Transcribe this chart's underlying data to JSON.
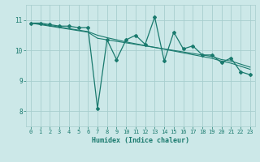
{
  "xlabel": "Humidex (Indice chaleur)",
  "ylabel": "",
  "bg_color": "#cce8e8",
  "line_color": "#1a7a6e",
  "grid_color": "#a8cece",
  "x_data": [
    0,
    1,
    2,
    3,
    4,
    5,
    6,
    7,
    8,
    9,
    10,
    11,
    12,
    13,
    14,
    15,
    16,
    17,
    18,
    19,
    20,
    21,
    22,
    23
  ],
  "y_main": [
    10.9,
    10.9,
    10.85,
    10.8,
    10.8,
    10.75,
    10.75,
    8.1,
    10.35,
    9.7,
    10.35,
    10.5,
    10.2,
    11.1,
    9.65,
    10.6,
    10.05,
    10.15,
    9.85,
    9.85,
    9.6,
    9.75,
    9.3,
    9.2
  ],
  "y_trend1": [
    10.9,
    10.85,
    10.8,
    10.75,
    10.7,
    10.65,
    10.6,
    10.4,
    10.35,
    10.3,
    10.25,
    10.2,
    10.15,
    10.1,
    10.05,
    10.0,
    9.95,
    9.9,
    9.85,
    9.8,
    9.7,
    9.65,
    9.55,
    9.45
  ],
  "y_trend2": [
    10.9,
    10.87,
    10.82,
    10.77,
    10.72,
    10.67,
    10.62,
    10.5,
    10.42,
    10.35,
    10.28,
    10.22,
    10.16,
    10.1,
    10.04,
    9.98,
    9.92,
    9.86,
    9.8,
    9.74,
    9.65,
    9.58,
    9.48,
    9.38
  ],
  "ylim": [
    7.5,
    11.5
  ],
  "xlim": [
    -0.5,
    23.5
  ],
  "yticks": [
    8,
    9,
    10,
    11
  ],
  "xticks": [
    0,
    1,
    2,
    3,
    4,
    5,
    6,
    7,
    8,
    9,
    10,
    11,
    12,
    13,
    14,
    15,
    16,
    17,
    18,
    19,
    20,
    21,
    22,
    23
  ],
  "tick_fontsize": 5.0,
  "xlabel_fontsize": 6.0
}
